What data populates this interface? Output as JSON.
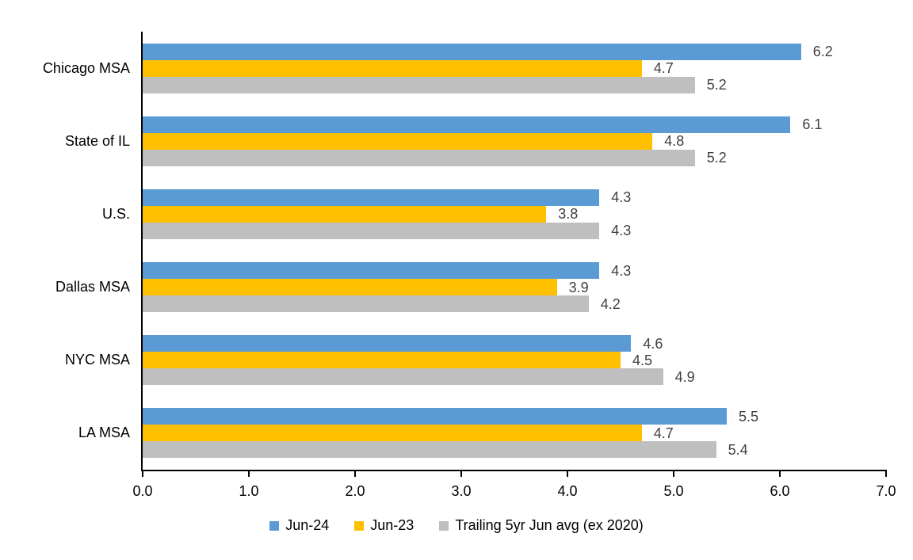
{
  "figure": {
    "background_color": "#ffffff",
    "axis_line_color": "#000000",
    "text_color": "#000000",
    "data_label_color": "#404040"
  },
  "chart_data": {
    "type": "bar",
    "orientation": "horizontal",
    "title": "",
    "xlabel": "",
    "ylabel": "",
    "grid": false,
    "data_labels": true,
    "legend_position": "bottom",
    "xlim": [
      0,
      7
    ],
    "x_tick_values": [
      0,
      1,
      2,
      3,
      4,
      5,
      6,
      7
    ],
    "x_tick_labels": [
      "0.0",
      "1.0",
      "2.0",
      "3.0",
      "4.0",
      "5.0",
      "6.0",
      "7.0"
    ],
    "categories": [
      "Chicago MSA",
      "State of IL",
      "U.S.",
      "Dallas MSA",
      "NYC MSA",
      "LA MSA"
    ],
    "series": [
      {
        "name": "Jun-24",
        "color": "#5B9BD5",
        "values": [
          6.2,
          6.1,
          4.3,
          4.3,
          4.6,
          5.5
        ]
      },
      {
        "name": "Jun-23",
        "color": "#FFC000",
        "values": [
          4.7,
          4.8,
          3.8,
          3.9,
          4.5,
          4.7
        ]
      },
      {
        "name": "Trailing 5yr Jun avg (ex 2020)",
        "color": "#BFBFBF",
        "values": [
          5.2,
          5.2,
          4.3,
          4.2,
          4.9,
          5.4
        ]
      }
    ]
  }
}
